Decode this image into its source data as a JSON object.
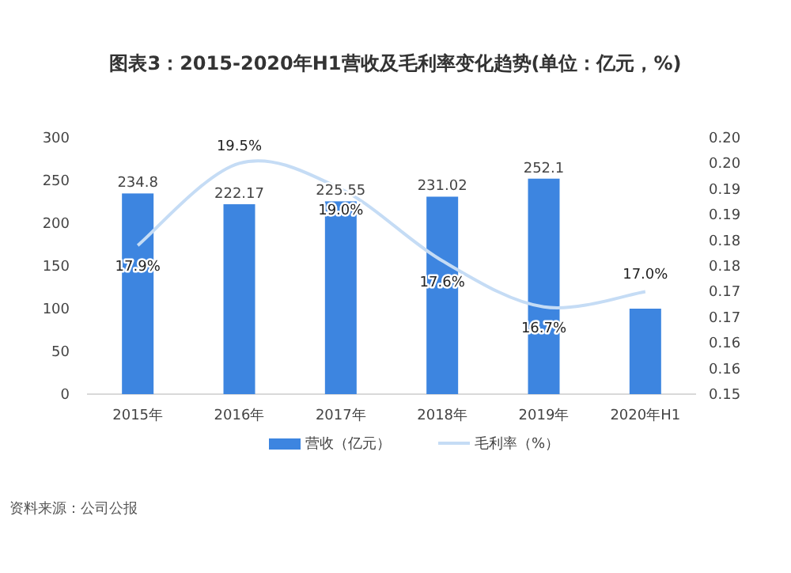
{
  "chart_data": {
    "type": "bar",
    "title": "图表3：2015-2020年H1营收及毛利率变化趋势(单位：亿元，%)",
    "categories": [
      "2015年",
      "2016年",
      "2017年",
      "2018年",
      "2019年",
      "2020年H1"
    ],
    "series": [
      {
        "name": "营收（亿元）",
        "type": "bar",
        "color": "#3d85e0",
        "values": [
          234.8,
          222.17,
          225.55,
          231.02,
          252.1,
          100
        ],
        "value_labels": [
          "234.8",
          "222.17",
          "225.55",
          "231.02",
          "252.1",
          null
        ]
      },
      {
        "name": "毛利率（%）",
        "type": "line",
        "axis": "y2",
        "color": "#c5dcf5",
        "values": [
          0.179,
          0.195,
          0.19,
          0.176,
          0.167,
          0.17
        ],
        "value_labels": [
          "17.9%",
          "19.5%",
          "19.0%",
          "17.6%",
          "16.7%",
          "17.0%"
        ]
      }
    ],
    "ylim": [
      0,
      300
    ],
    "yticks": [
      0,
      50,
      100,
      150,
      200,
      250,
      300
    ],
    "y2lim": [
      0.15,
      0.2
    ],
    "y2ticks": [
      {
        "value": 0.15,
        "label": "0.15"
      },
      {
        "value": 0.155,
        "label": "0.16"
      },
      {
        "value": 0.16,
        "label": "0.16"
      },
      {
        "value": 0.165,
        "label": "0.17"
      },
      {
        "value": 0.17,
        "label": "0.17"
      },
      {
        "value": 0.175,
        "label": "0.18"
      },
      {
        "value": 0.18,
        "label": "0.18"
      },
      {
        "value": 0.185,
        "label": "0.19"
      },
      {
        "value": 0.19,
        "label": "0.19"
      },
      {
        "value": 0.195,
        "label": "0.20"
      },
      {
        "value": 0.2,
        "label": "0.20"
      }
    ],
    "legend": "bottom",
    "grid": false,
    "annotations": [
      "资料来源：公司公报"
    ]
  }
}
